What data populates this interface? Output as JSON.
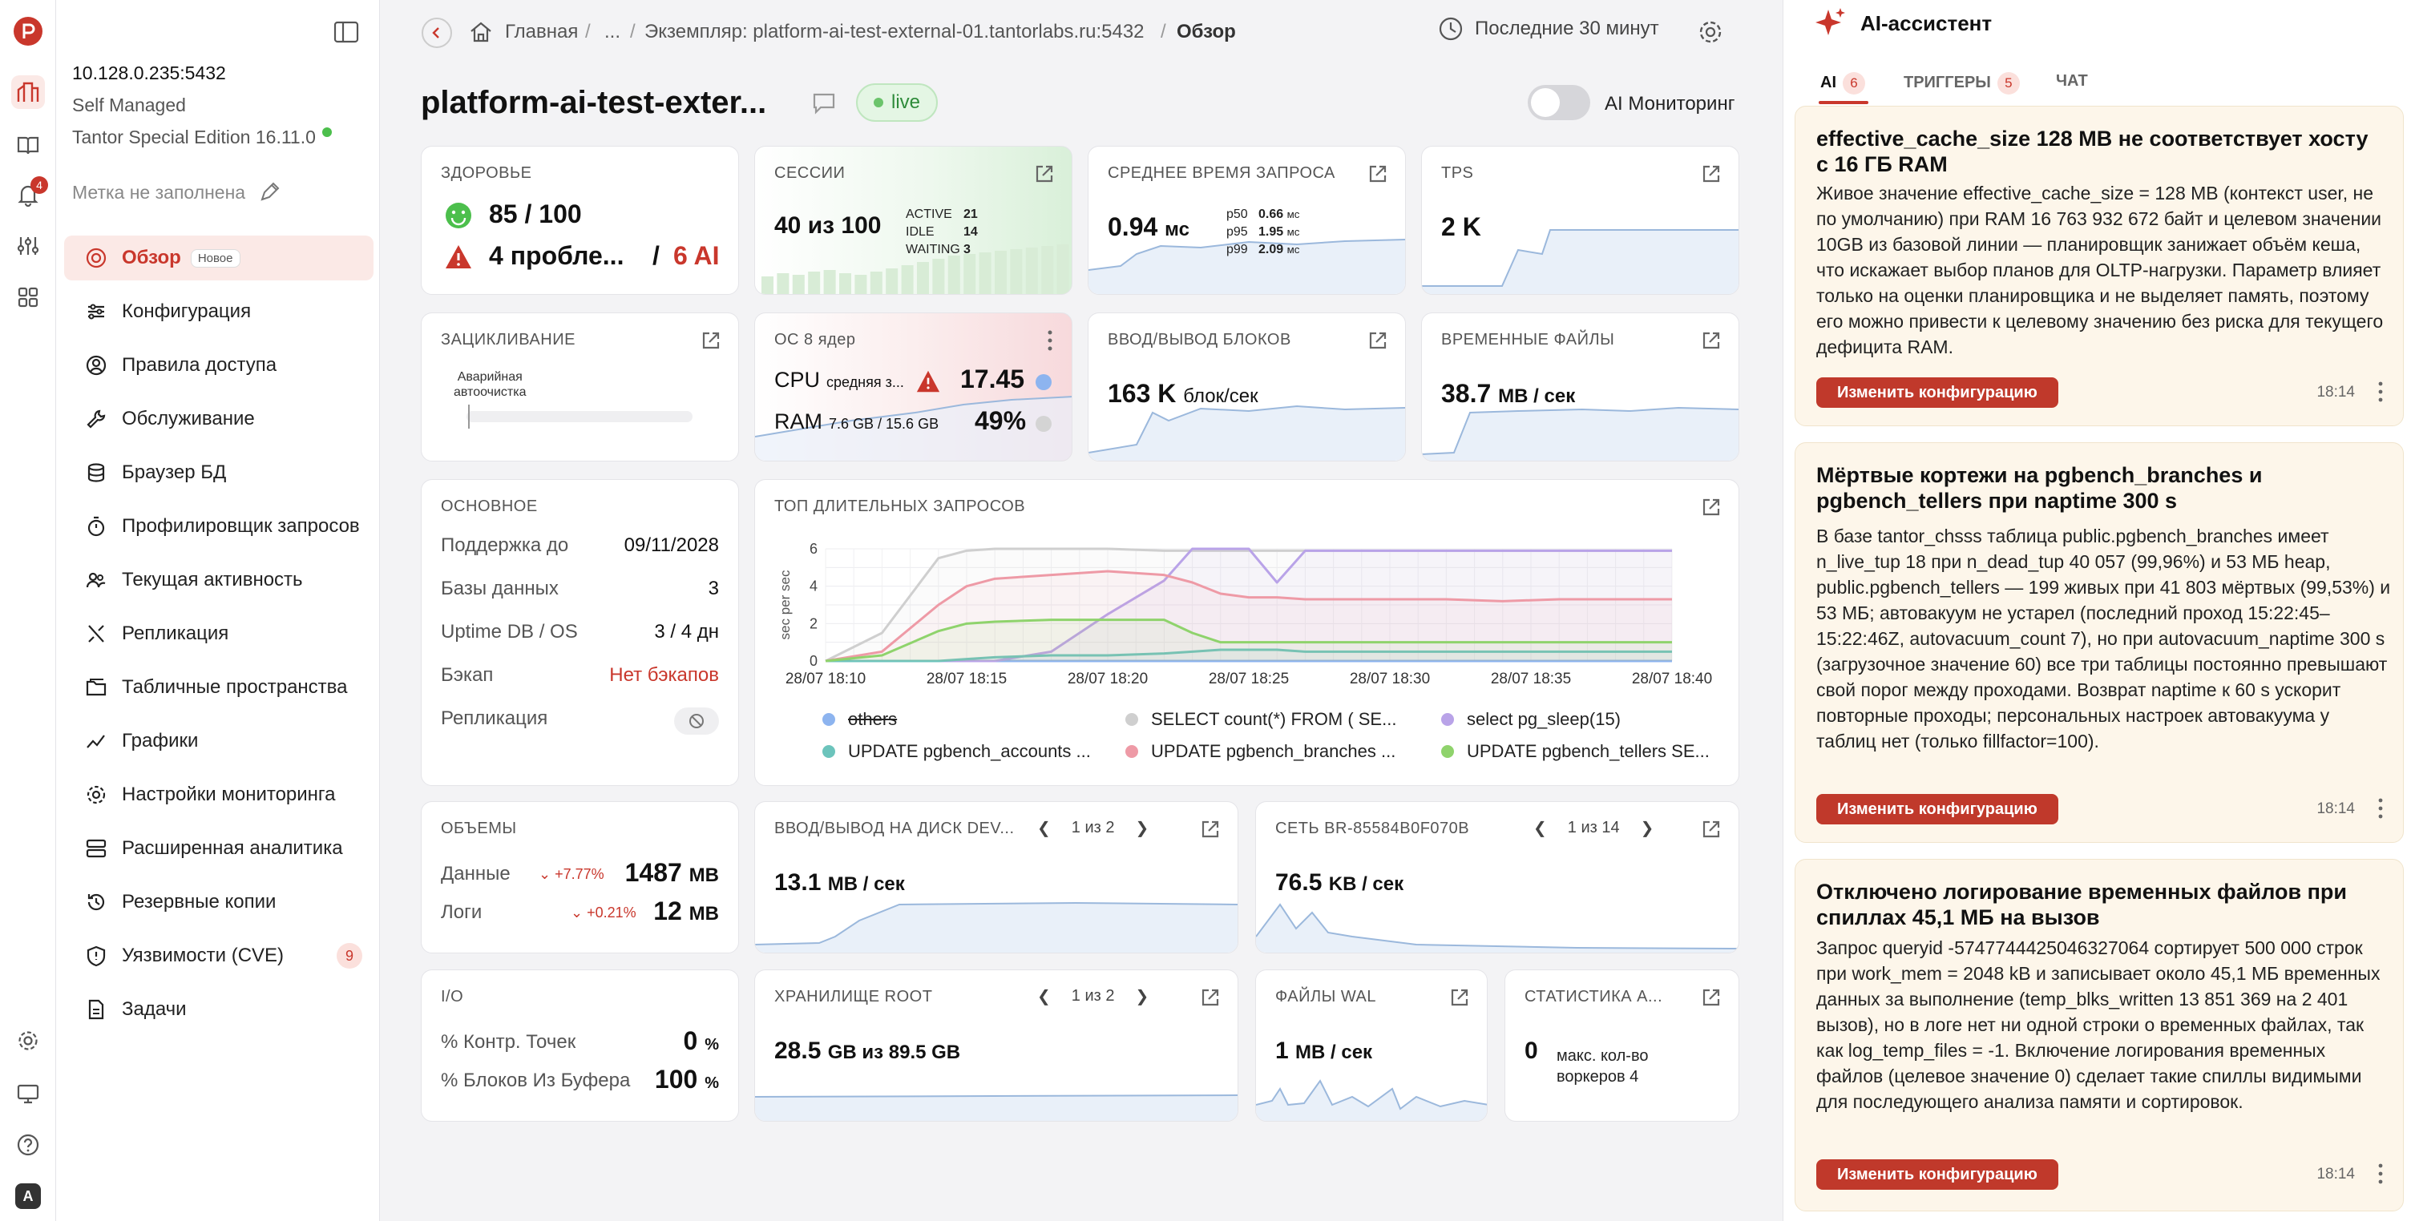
{
  "app": {
    "logo_icon": "app-logo-icon"
  },
  "rail": {
    "notifications_count": "4",
    "user_initial": "A"
  },
  "instance": {
    "address": "10.128.0.235:5432",
    "mode": "Self Managed",
    "edition": "Tantor Special Edition 16.11.0",
    "label_placeholder": "Метка не заполнена"
  },
  "nav": {
    "items": [
      {
        "label": "Обзор",
        "badge": "Новое"
      },
      {
        "label": "Конфигурация"
      },
      {
        "label": "Правила доступа"
      },
      {
        "label": "Обслуживание"
      },
      {
        "label": "Браузер БД"
      },
      {
        "label": "Профилировщик запросов"
      },
      {
        "label": "Текущая активность"
      },
      {
        "label": "Репликация"
      },
      {
        "label": "Табличные пространства"
      },
      {
        "label": "Графики"
      },
      {
        "label": "Настройки мониторинга"
      },
      {
        "label": "Расширенная аналитика"
      },
      {
        "label": "Резервные копии"
      },
      {
        "label": "Уязвимости (CVE)",
        "count": "9"
      },
      {
        "label": "Задачи"
      }
    ]
  },
  "breadcrumb": {
    "home": "Главная",
    "ellipsis": "...",
    "instance": "Экземпляр: platform-ai-test-external-01.tantorlabs.ru:5432",
    "current": "Обзор",
    "sep": "/"
  },
  "header": {
    "time_range": "Последние 30 минут",
    "title": "platform-ai-test-exter...",
    "live": "live",
    "ai_monitoring": "AI Мониторинг"
  },
  "cards": {
    "health": {
      "title": "Здоровье",
      "score": "85 / 100",
      "problems": "4 пробле...",
      "sep": "/",
      "ai": "6 AI"
    },
    "sessions": {
      "title": "Сессии",
      "value": "40 из 100",
      "active_label": "ACTIVE",
      "active": "21",
      "idle_label": "IDLE",
      "idle": "14",
      "waiting_label": "WAITING",
      "waiting": "3"
    },
    "avg_query": {
      "title": "Среднее время запроса",
      "value": "0.94",
      "unit": "мс",
      "p50_label": "p50",
      "p50": "0.66",
      "p95_label": "p95",
      "p95": "1.95",
      "p99_label": "p99",
      "p99": "2.09",
      "pu": "мс"
    },
    "tps": {
      "title": "TPS",
      "value": "2 K"
    },
    "wraparound": {
      "title": "Зацикливание",
      "line1": "Аварийная",
      "line2": "автоочистка"
    },
    "os": {
      "title": "ОС 8 ядер",
      "cpu_label": "CPU",
      "cpu_sub": "средняя з...",
      "cpu_value": "17.45",
      "ram_label": "RAM",
      "ram_sub": "7.6 GB / 15.6 GB",
      "ram_value": "49%"
    },
    "block_io": {
      "title": "Ввод/вывод блоков",
      "value": "163 K",
      "unit": "блок/сек"
    },
    "temp_files": {
      "title": "Временные файлы",
      "value": "38.7",
      "unit": "МВ / сек"
    },
    "basic": {
      "title": "Основное",
      "rows": [
        {
          "k": "Поддержка до",
          "v": "09/11/2028"
        },
        {
          "k": "Базы данных",
          "v": "3"
        },
        {
          "k": "Uptime DB / OS",
          "v": "3 / 4 дн"
        },
        {
          "k": "Бэкап",
          "v": "Нет бэкапов"
        },
        {
          "k": "Репликация",
          "v": ""
        }
      ]
    },
    "volumes": {
      "title": "Объемы",
      "data_label": "Данные",
      "data_delta": "+7.77%",
      "data_value": "1487",
      "data_unit": "МВ",
      "logs_label": "Логи",
      "logs_delta": "+0.21%",
      "logs_value": "12",
      "logs_unit": "МВ"
    },
    "disk_io": {
      "title": "Ввод/вывод на диск DEV...",
      "pager": "1 из 2",
      "value": "13.1",
      "unit": "МВ / сек"
    },
    "network": {
      "title": "Сеть BR-85584B0F070B",
      "pager": "1 из 14",
      "value": "76.5",
      "unit": "KB / сек"
    },
    "io": {
      "title": "I/O",
      "row1_label": "% Контр. Точек",
      "row1_value": "0",
      "row2_label": "% Блоков Из Буфера",
      "row2_value": "100",
      "pct": "%"
    },
    "storage": {
      "title": "Хранилище ROOT",
      "pager": "1 из 2",
      "value": "28.5",
      "unit": "GB из 89.5 GB"
    },
    "wal": {
      "title": "Файлы WAL",
      "value": "1",
      "unit": "МВ / сек"
    },
    "stats": {
      "title": "Статистика А...",
      "value": "0",
      "line1": "макс. кол-во",
      "line2": "воркеров 4"
    }
  },
  "chart_data": {
    "type": "line",
    "title": "Топ длительных запросов",
    "ylabel": "sec per sec",
    "ylim": [
      0,
      6
    ],
    "yticks": [
      "0",
      "2",
      "4",
      "6"
    ],
    "ylabels_all": [
      "0",
      "1",
      "2",
      "3",
      "4",
      "5",
      "6"
    ],
    "xticks": [
      "28/07 18:10",
      "28/07 18:15",
      "28/07 18:20",
      "28/07 18:25",
      "28/07 18:30",
      "28/07 18:35",
      "28/07 18:40"
    ],
    "x": [
      0,
      2,
      4,
      5,
      6,
      8,
      10,
      12,
      13,
      14,
      15,
      16,
      17,
      18,
      20,
      22,
      24,
      26,
      28,
      30
    ],
    "series": [
      {
        "name": "others",
        "color": "#8db4ef",
        "values": [
          0,
          0,
          0,
          0,
          0,
          0,
          0,
          0,
          0,
          0,
          0,
          0,
          0,
          0,
          0,
          0,
          0,
          0,
          0,
          0
        ]
      },
      {
        "name": "SELECT count(*) FROM ( SE...",
        "color": "#cfcfcf",
        "values": [
          0,
          1.5,
          5.5,
          5.9,
          6,
          6,
          6,
          5.9,
          5.9,
          5.9,
          5.9,
          5.9,
          5.9,
          5.9,
          5.9,
          5.9,
          5.9,
          5.9,
          5.9,
          5.9
        ]
      },
      {
        "name": "select pg_sleep(15)",
        "color": "#b9a3e8",
        "values": [
          0,
          0,
          0,
          0,
          0,
          0.5,
          2.5,
          4.3,
          6,
          6,
          6,
          4.2,
          5.9,
          5.9,
          5.9,
          5.9,
          5.9,
          5.9,
          5.9,
          5.9
        ]
      },
      {
        "name": "UPDATE pgbench_accounts ...",
        "color": "#6cc4bc",
        "values": [
          0,
          0,
          0,
          0.1,
          0.2,
          0.3,
          0.3,
          0.4,
          0.5,
          0.6,
          0.6,
          0.6,
          0.5,
          0.5,
          0.5,
          0.5,
          0.5,
          0.5,
          0.5,
          0.5
        ]
      },
      {
        "name": "UPDATE pgbench_branches ...",
        "color": "#ee9aa6",
        "values": [
          0,
          0.5,
          3,
          4,
          4.4,
          4.6,
          4.8,
          4.6,
          4.2,
          3.6,
          3.4,
          3.4,
          3.3,
          3.3,
          3.3,
          3.3,
          3.2,
          3.3,
          3.3,
          3.3
        ]
      },
      {
        "name": "UPDATE pgbench_tellers SE...",
        "color": "#8fd36c",
        "values": [
          0,
          0.3,
          1.6,
          2,
          2.1,
          2.2,
          2.2,
          2.2,
          1.5,
          1,
          1,
          1,
          1,
          1,
          1,
          1,
          1,
          1,
          1,
          1
        ]
      }
    ],
    "legend": "bottom",
    "grid": true
  },
  "assistant": {
    "title": "AI-ассистент",
    "tabs": [
      {
        "label": "AI",
        "count": "6"
      },
      {
        "label": "ТРИГГЕРЫ",
        "count": "5"
      },
      {
        "label": "ЧАТ"
      }
    ],
    "cards": [
      {
        "title": "effective_cache_size 128 МВ не соответствует хосту с 16 ГБ RAM",
        "body": "Живое значение effective_cache_size = 128 MB (контекст user, не по умолчанию) при RAM 16 763 932 672 байт и целевом значении 10GB из базовой линии — планировщик занижает объём кеша, что искажает выбор планов для OLTP-нагрузки. Параметр влияет только на оценки планировщика и не выделяет память, поэтому его можно привести к целевому значению без риска для текущего дефицита RAM.",
        "button": "Изменить конфигурацию",
        "time": "18:14"
      },
      {
        "title": "Мёртвые кортежи на pgbench_branches и pgbench_tellers при naptime 300 s",
        "body": "В базе tantor_chsss таблица public.pgbench_branches имеет n_live_tup 18 при n_dead_tup 40 057 (99,96%) и 53 МБ heap, public.pgbench_tellers — 199 живых при 41 803 мёртвых (99,53%) и 53 МБ; автовакуум не устарел (последний проход 15:22:45–15:22:46Z, autovacuum_count 7), но при autovacuum_naptime 300 s (загрузочное значение 60) все три таблицы постоянно превышают свой порог между проходами. Возврат naptime к 60 s ускорит повторные проходы; персональных настроек автовакуума у таблиц нет (только fillfactor=100).",
        "button": "Изменить конфигурацию",
        "time": "18:14"
      },
      {
        "title": "Отключено логирование временных файлов при спиллах 45,1 МБ на вызов",
        "body": "Запрос queryid -5747744425046327064 сортирует 500 000 строк при work_mem = 2048 kB и записывает около 45,1 МБ временных данных за выполнение (temp_blks_written 13 851 369 на 2 401 вызов), но в логе нет ни одной строки о временных файлах, так как log_temp_files = -1. Включение логирования временных файлов (целевое значение 0) сделает такие спиллы видимыми для последующего анализа памяти и сортировок.",
        "button": "Изменить конфигурацию",
        "time": "18:14"
      }
    ]
  },
  "colors": {
    "accent": "#c9372c",
    "ok": "#4cbf4c",
    "warn": "#c9372c",
    "spark_line": "#9bb8dc",
    "spark_fill": "#e9f0f9"
  }
}
